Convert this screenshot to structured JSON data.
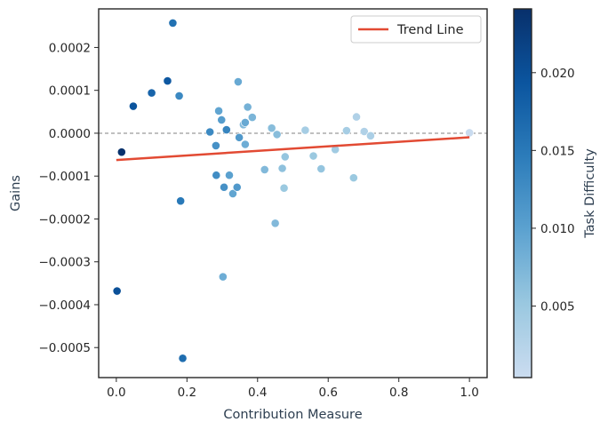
{
  "chart_data": {
    "type": "scatter",
    "xlabel": "Contribution Measure",
    "ylabel": "Gains",
    "colorbar_label": "Task Difficulty",
    "xlim": [
      -0.05,
      1.05
    ],
    "ylim": [
      -0.00057,
      0.00029
    ],
    "x_ticks": [
      0.0,
      0.2,
      0.4,
      0.6,
      0.8,
      1.0
    ],
    "x_tick_labels": [
      "0.0",
      "0.2",
      "0.4",
      "0.6",
      "0.8",
      "1.0"
    ],
    "y_ticks": [
      0.0002,
      0.0001,
      0.0,
      -0.0001,
      -0.0002,
      -0.0003,
      -0.0004,
      -0.0005
    ],
    "y_tick_labels": [
      "0.0002",
      "0.0001",
      "0.0000",
      "−0.0001",
      "−0.0002",
      "−0.0003",
      "−0.0004",
      "−0.0005"
    ],
    "color_range": [
      0.0004,
      0.0241
    ],
    "colorbar_ticks": [
      0.005,
      0.01,
      0.015,
      0.02
    ],
    "colorbar_tick_labels": [
      "0.005",
      "0.010",
      "0.015",
      "0.020"
    ],
    "colormap": [
      "#cbdcf0",
      "#9ac8e0",
      "#5ca2d0",
      "#2c7cba",
      "#0b559f",
      "#08306b"
    ],
    "zero_line": 0.0,
    "grid": false,
    "legend": {
      "label": "Trend Line",
      "position": "top-right"
    },
    "trend_line": {
      "x": [
        0.0,
        1.0
      ],
      "y": [
        -6.25e-05,
        -9.5e-06
      ],
      "color": "#e24a33"
    },
    "points": [
      {
        "x": 0.002,
        "y": -0.000368,
        "c": 0.02
      },
      {
        "x": 0.015,
        "y": -4.4e-05,
        "c": 0.024
      },
      {
        "x": 0.048,
        "y": 6.3e-05,
        "c": 0.0195
      },
      {
        "x": 0.1,
        "y": 9.4e-05,
        "c": 0.0175
      },
      {
        "x": 0.145,
        "y": 0.000122,
        "c": 0.019
      },
      {
        "x": 0.16,
        "y": 0.000257,
        "c": 0.016
      },
      {
        "x": 0.178,
        "y": 8.7e-05,
        "c": 0.013
      },
      {
        "x": 0.182,
        "y": -0.000158,
        "c": 0.015
      },
      {
        "x": 0.188,
        "y": -0.000525,
        "c": 0.0165
      },
      {
        "x": 0.265,
        "y": 3e-06,
        "c": 0.013
      },
      {
        "x": 0.282,
        "y": -2.9e-05,
        "c": 0.012
      },
      {
        "x": 0.283,
        "y": -9.8e-05,
        "c": 0.0125
      },
      {
        "x": 0.29,
        "y": 5.2e-05,
        "c": 0.0095
      },
      {
        "x": 0.298,
        "y": 3.1e-05,
        "c": 0.0105
      },
      {
        "x": 0.302,
        "y": -0.000335,
        "c": 0.0085
      },
      {
        "x": 0.305,
        "y": -0.000126,
        "c": 0.012
      },
      {
        "x": 0.312,
        "y": 8e-06,
        "c": 0.0135
      },
      {
        "x": 0.32,
        "y": -9.8e-05,
        "c": 0.01
      },
      {
        "x": 0.33,
        "y": -0.000141,
        "c": 0.0095
      },
      {
        "x": 0.342,
        "y": -0.000126,
        "c": 0.011
      },
      {
        "x": 0.345,
        "y": 0.00012,
        "c": 0.009
      },
      {
        "x": 0.348,
        "y": -1e-05,
        "c": 0.011
      },
      {
        "x": 0.36,
        "y": 2e-05,
        "c": 0.007
      },
      {
        "x": 0.365,
        "y": 2.5e-05,
        "c": 0.009
      },
      {
        "x": 0.365,
        "y": -2.6e-05,
        "c": 0.0085
      },
      {
        "x": 0.372,
        "y": 6.1e-05,
        "c": 0.008
      },
      {
        "x": 0.385,
        "y": 3.7e-05,
        "c": 0.0075
      },
      {
        "x": 0.42,
        "y": -8.5e-05,
        "c": 0.007
      },
      {
        "x": 0.44,
        "y": 1.2e-05,
        "c": 0.0065
      },
      {
        "x": 0.45,
        "y": -0.00021,
        "c": 0.007
      },
      {
        "x": 0.455,
        "y": -3e-06,
        "c": 0.0065
      },
      {
        "x": 0.47,
        "y": -8.2e-05,
        "c": 0.006
      },
      {
        "x": 0.475,
        "y": -0.000128,
        "c": 0.005
      },
      {
        "x": 0.478,
        "y": -5.5e-05,
        "c": 0.0055
      },
      {
        "x": 0.535,
        "y": 7e-06,
        "c": 0.004
      },
      {
        "x": 0.558,
        "y": -5.3e-05,
        "c": 0.005
      },
      {
        "x": 0.58,
        "y": -8.3e-05,
        "c": 0.0055
      },
      {
        "x": 0.62,
        "y": -3.8e-05,
        "c": 0.0045
      },
      {
        "x": 0.652,
        "y": 6e-06,
        "c": 0.004
      },
      {
        "x": 0.672,
        "y": -0.000104,
        "c": 0.005
      },
      {
        "x": 0.68,
        "y": 3.8e-05,
        "c": 0.003
      },
      {
        "x": 0.702,
        "y": 4e-06,
        "c": 0.003
      },
      {
        "x": 0.72,
        "y": -6e-06,
        "c": 0.0035
      },
      {
        "x": 1.0,
        "y": 1e-06,
        "c": 0.0006
      }
    ]
  }
}
